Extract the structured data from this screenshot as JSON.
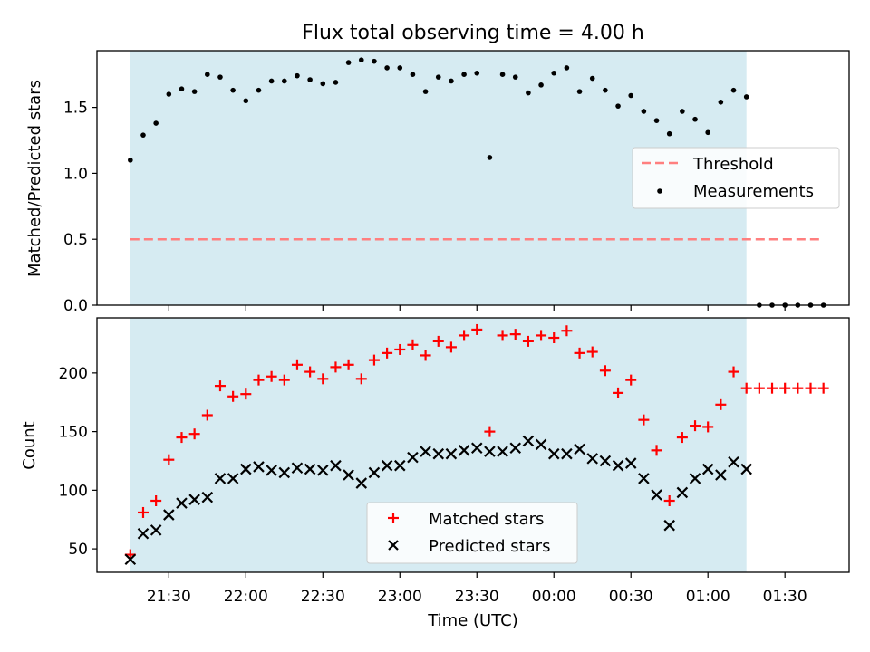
{
  "chart_data": [
    {
      "type": "scatter",
      "title": "Flux total observing time = 4.00 h",
      "ylabel": "Matched/Predicted stars",
      "ylim": [
        0,
        1.93
      ],
      "yticks": [
        0.0,
        0.5,
        1.0,
        1.5
      ],
      "ytick_labels": [
        "0.0",
        "0.5",
        "1.0",
        "1.5"
      ],
      "shaded_span": [
        "21:15",
        "01:15"
      ],
      "shade_color": "#add8e6",
      "threshold": {
        "name": "Threshold",
        "value": 0.5,
        "x_range": [
          "21:15",
          "01:45"
        ],
        "color": "#ff7f7f"
      },
      "series": [
        {
          "name": "Measurements",
          "color": "#000000",
          "points": [
            [
              "21:15",
              1.1
            ],
            [
              "21:20",
              1.29
            ],
            [
              "21:25",
              1.38
            ],
            [
              "21:30",
              1.6
            ],
            [
              "21:35",
              1.64
            ],
            [
              "21:40",
              1.62
            ],
            [
              "21:45",
              1.75
            ],
            [
              "21:50",
              1.73
            ],
            [
              "21:55",
              1.63
            ],
            [
              "22:00",
              1.55
            ],
            [
              "22:05",
              1.63
            ],
            [
              "22:10",
              1.7
            ],
            [
              "22:15",
              1.7
            ],
            [
              "22:20",
              1.74
            ],
            [
              "22:25",
              1.71
            ],
            [
              "22:30",
              1.68
            ],
            [
              "22:35",
              1.69
            ],
            [
              "22:40",
              1.84
            ],
            [
              "22:45",
              1.86
            ],
            [
              "22:50",
              1.85
            ],
            [
              "22:55",
              1.8
            ],
            [
              "23:00",
              1.8
            ],
            [
              "23:05",
              1.75
            ],
            [
              "23:10",
              1.62
            ],
            [
              "23:15",
              1.73
            ],
            [
              "23:20",
              1.7
            ],
            [
              "23:25",
              1.75
            ],
            [
              "23:30",
              1.76
            ],
            [
              "23:35",
              1.12
            ],
            [
              "23:40",
              1.75
            ],
            [
              "23:45",
              1.73
            ],
            [
              "23:50",
              1.61
            ],
            [
              "23:55",
              1.67
            ],
            [
              "00:00",
              1.76
            ],
            [
              "00:05",
              1.8
            ],
            [
              "00:10",
              1.62
            ],
            [
              "00:15",
              1.72
            ],
            [
              "00:20",
              1.63
            ],
            [
              "00:25",
              1.51
            ],
            [
              "00:30",
              1.59
            ],
            [
              "00:35",
              1.47
            ],
            [
              "00:40",
              1.4
            ],
            [
              "00:45",
              1.3
            ],
            [
              "00:50",
              1.47
            ],
            [
              "00:55",
              1.41
            ],
            [
              "01:00",
              1.31
            ],
            [
              "01:05",
              1.54
            ],
            [
              "01:10",
              1.63
            ],
            [
              "01:15",
              1.58
            ],
            [
              "01:20",
              0.0
            ],
            [
              "01:25",
              0.0
            ],
            [
              "01:30",
              0.0
            ],
            [
              "01:35",
              0.0
            ],
            [
              "01:40",
              0.0
            ],
            [
              "01:45",
              0.0
            ]
          ]
        }
      ],
      "legend": {
        "placement": "center-right",
        "entries": [
          "Threshold",
          "Measurements"
        ]
      }
    },
    {
      "type": "scatter",
      "xlabel": "Time (UTC)",
      "ylabel": "Count",
      "ylim": [
        30,
        247
      ],
      "yticks": [
        50,
        100,
        150,
        200
      ],
      "xticks": [
        "21:30",
        "22:00",
        "22:30",
        "23:00",
        "23:30",
        "00:00",
        "00:30",
        "01:00",
        "01:30"
      ],
      "xlim": [
        "21:02",
        "01:55"
      ],
      "shaded_span": [
        "21:15",
        "01:15"
      ],
      "shade_color": "#add8e6",
      "series": [
        {
          "name": "Matched stars",
          "marker": "plus",
          "color": "#ff0000",
          "points": [
            [
              "21:15",
              45
            ],
            [
              "21:20",
              81
            ],
            [
              "21:25",
              91
            ],
            [
              "21:30",
              126
            ],
            [
              "21:35",
              145
            ],
            [
              "21:40",
              148
            ],
            [
              "21:45",
              164
            ],
            [
              "21:50",
              189
            ],
            [
              "21:55",
              180
            ],
            [
              "22:00",
              182
            ],
            [
              "22:05",
              194
            ],
            [
              "22:10",
              197
            ],
            [
              "22:15",
              194
            ],
            [
              "22:20",
              207
            ],
            [
              "22:25",
              201
            ],
            [
              "22:30",
              195
            ],
            [
              "22:35",
              205
            ],
            [
              "22:40",
              207
            ],
            [
              "22:45",
              195
            ],
            [
              "22:50",
              211
            ],
            [
              "22:55",
              217
            ],
            [
              "23:00",
              220
            ],
            [
              "23:05",
              224
            ],
            [
              "23:10",
              215
            ],
            [
              "23:15",
              227
            ],
            [
              "23:20",
              222
            ],
            [
              "23:25",
              232
            ],
            [
              "23:30",
              237
            ],
            [
              "23:35",
              150
            ],
            [
              "23:40",
              232
            ],
            [
              "23:45",
              233
            ],
            [
              "23:50",
              227
            ],
            [
              "23:55",
              232
            ],
            [
              "00:00",
              230
            ],
            [
              "00:05",
              236
            ],
            [
              "00:10",
              217
            ],
            [
              "00:15",
              218
            ],
            [
              "00:20",
              202
            ],
            [
              "00:25",
              183
            ],
            [
              "00:30",
              194
            ],
            [
              "00:35",
              160
            ],
            [
              "00:40",
              134
            ],
            [
              "00:45",
              91
            ],
            [
              "00:50",
              145
            ],
            [
              "00:55",
              155
            ],
            [
              "01:00",
              154
            ],
            [
              "01:05",
              173
            ],
            [
              "01:10",
              201
            ],
            [
              "01:15",
              187
            ],
            [
              "01:20",
              187
            ],
            [
              "01:25",
              187
            ],
            [
              "01:30",
              187
            ],
            [
              "01:35",
              187
            ],
            [
              "01:40",
              187
            ],
            [
              "01:45",
              187
            ]
          ]
        },
        {
          "name": "Predicted stars",
          "marker": "x",
          "color": "#000000",
          "points": [
            [
              "21:15",
              41
            ],
            [
              "21:20",
              63
            ],
            [
              "21:25",
              66
            ],
            [
              "21:30",
              79
            ],
            [
              "21:35",
              89
            ],
            [
              "21:40",
              92
            ],
            [
              "21:45",
              94
            ],
            [
              "21:50",
              110
            ],
            [
              "21:55",
              110
            ],
            [
              "22:00",
              118
            ],
            [
              "22:05",
              120
            ],
            [
              "22:10",
              117
            ],
            [
              "22:15",
              115
            ],
            [
              "22:20",
              119
            ],
            [
              "22:25",
              118
            ],
            [
              "22:30",
              117
            ],
            [
              "22:35",
              121
            ],
            [
              "22:40",
              113
            ],
            [
              "22:45",
              106
            ],
            [
              "22:50",
              115
            ],
            [
              "22:55",
              121
            ],
            [
              "23:00",
              121
            ],
            [
              "23:05",
              128
            ],
            [
              "23:10",
              133
            ],
            [
              "23:15",
              131
            ],
            [
              "23:20",
              131
            ],
            [
              "23:25",
              134
            ],
            [
              "23:30",
              136
            ],
            [
              "23:35",
              133
            ],
            [
              "23:40",
              133
            ],
            [
              "23:45",
              136
            ],
            [
              "23:50",
              142
            ],
            [
              "23:55",
              139
            ],
            [
              "00:00",
              131
            ],
            [
              "00:05",
              131
            ],
            [
              "00:10",
              135
            ],
            [
              "00:15",
              127
            ],
            [
              "00:20",
              125
            ],
            [
              "00:25",
              121
            ],
            [
              "00:30",
              123
            ],
            [
              "00:35",
              110
            ],
            [
              "00:40",
              96
            ],
            [
              "00:45",
              70
            ],
            [
              "00:50",
              98
            ],
            [
              "00:55",
              110
            ],
            [
              "01:00",
              118
            ],
            [
              "01:05",
              113
            ],
            [
              "01:10",
              124
            ],
            [
              "01:15",
              118
            ]
          ]
        }
      ],
      "legend": {
        "placement": "bottom-center",
        "entries": [
          "Matched stars",
          "Predicted stars"
        ]
      }
    }
  ]
}
